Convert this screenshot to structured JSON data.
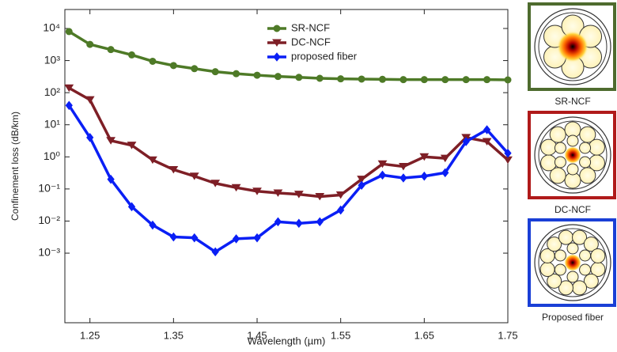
{
  "chart_data": {
    "type": "line",
    "x_label": "Wavelength (µm)",
    "y_label": "Confinement loss (dB/km)",
    "x": [
      1.225,
      1.25,
      1.275,
      1.3,
      1.325,
      1.35,
      1.375,
      1.4,
      1.425,
      1.45,
      1.475,
      1.5,
      1.525,
      1.55,
      1.575,
      1.6,
      1.625,
      1.65,
      1.675,
      1.7,
      1.725,
      1.75
    ],
    "series": [
      {
        "name": "SR-NCF",
        "color": "#4e7a27",
        "marker": "circle",
        "values": [
          8000,
          3200,
          2200,
          1500,
          950,
          700,
          560,
          450,
          390,
          350,
          320,
          300,
          280,
          270,
          265,
          260,
          255,
          255,
          255,
          255,
          255,
          250
        ]
      },
      {
        "name": "DC-NCF",
        "color": "#7e1f26",
        "marker": "triangle-down",
        "values": [
          140,
          60,
          3.2,
          2.3,
          0.8,
          0.4,
          0.25,
          0.15,
          0.11,
          0.085,
          0.075,
          0.068,
          0.058,
          0.065,
          0.2,
          0.6,
          0.5,
          1.0,
          0.9,
          4,
          3,
          0.8
        ]
      },
      {
        "name": "proposed fiber",
        "color": "#0a1ff5",
        "marker": "diamond",
        "values": [
          40,
          4,
          0.2,
          0.028,
          0.0075,
          0.0032,
          0.003,
          0.0011,
          0.0028,
          0.003,
          0.0095,
          0.0085,
          0.0095,
          0.022,
          0.13,
          0.27,
          0.22,
          0.25,
          0.32,
          3,
          7,
          1.3
        ]
      }
    ],
    "xlim": [
      1.22,
      1.75
    ],
    "xticks": [
      1.25,
      1.35,
      1.45,
      1.55,
      1.65,
      1.75
    ],
    "ylim": [
      6.8e-06,
      39000
    ],
    "y_log": true,
    "yticks": [
      {
        "value": 0.001,
        "label": "10⁻³"
      },
      {
        "value": 0.01,
        "label": "10⁻²"
      },
      {
        "value": 0.1,
        "label": "10⁻¹"
      },
      {
        "value": 1,
        "label": "10⁰"
      },
      {
        "value": 10,
        "label": "10¹"
      },
      {
        "value": 100,
        "label": "10²"
      },
      {
        "value": 1000,
        "label": "10³"
      },
      {
        "value": 10000,
        "label": "10⁴"
      }
    ],
    "legend": "upper center"
  },
  "side_panels": [
    {
      "label": "SR-NCF",
      "color": "#4e6b2e"
    },
    {
      "label": "DC-NCF",
      "color": "#b01a1a"
    },
    {
      "label": "Proposed fiber",
      "color": "#1a3fd6"
    }
  ]
}
